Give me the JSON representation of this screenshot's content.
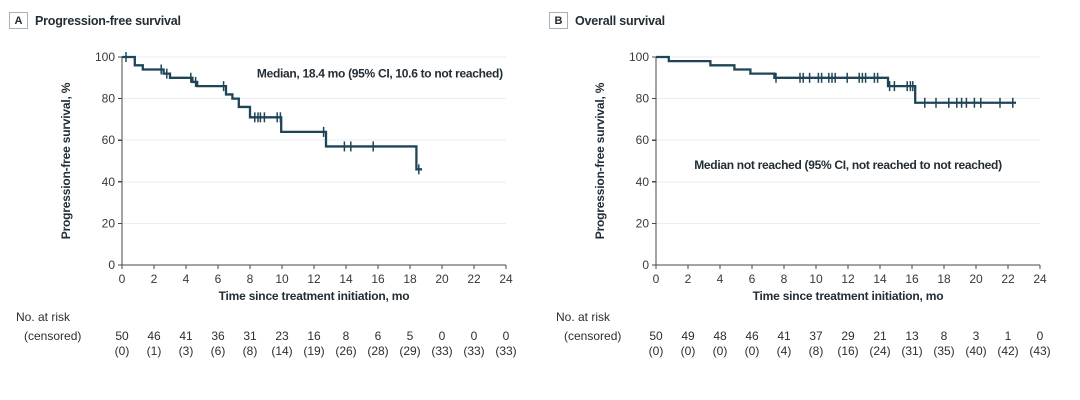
{
  "colors": {
    "curve": "#1e4557",
    "axis": "#45494d",
    "grid": "#e7edf0",
    "text": "#232d34",
    "tick_text": "#36393d",
    "background": "#ffffff"
  },
  "chart_data": [
    {
      "type": "line",
      "subtype": "kaplan-meier-step",
      "panel_label": "A",
      "panel_title": "Progression-free survival",
      "ylabel": "Progression-free survival, %",
      "xlabel": "Time since treatment initiation, mo",
      "xlim": [
        0,
        24
      ],
      "ylim": [
        0,
        100
      ],
      "x_ticks": [
        0,
        2,
        4,
        6,
        8,
        10,
        12,
        14,
        16,
        18,
        20,
        22,
        24
      ],
      "y_ticks": [
        0,
        20,
        40,
        60,
        80,
        100
      ],
      "grid": "horizontal",
      "annotation": {
        "text": "Median, 18.4 mo (95% CI, 10.6 to not reached)",
        "x": 23.8,
        "y": 92,
        "anchor": "end"
      },
      "steps": [
        [
          0,
          100
        ],
        [
          0.8,
          96
        ],
        [
          1.3,
          94
        ],
        [
          2.6,
          92
        ],
        [
          3.0,
          90
        ],
        [
          4.4,
          88
        ],
        [
          4.7,
          86
        ],
        [
          6.5,
          82
        ],
        [
          6.9,
          80
        ],
        [
          7.3,
          76
        ],
        [
          8.0,
          71
        ],
        [
          9.95,
          64
        ],
        [
          12.75,
          57
        ],
        [
          18.4,
          46
        ]
      ],
      "curve_end": 18.75,
      "censors": [
        [
          0.25,
          100
        ],
        [
          2.45,
          94
        ],
        [
          2.8,
          92
        ],
        [
          4.3,
          90
        ],
        [
          4.6,
          88
        ],
        [
          6.35,
          86
        ],
        [
          8.3,
          71
        ],
        [
          8.5,
          71
        ],
        [
          8.65,
          71
        ],
        [
          8.9,
          71
        ],
        [
          9.7,
          71
        ],
        [
          9.9,
          71
        ],
        [
          12.6,
          64
        ],
        [
          13.9,
          57
        ],
        [
          14.3,
          57
        ],
        [
          15.7,
          57
        ],
        [
          18.55,
          46
        ]
      ],
      "at_risk_header": "No. at risk",
      "at_risk_subheader": "(censored)",
      "at_risk_times": [
        0,
        2,
        4,
        6,
        8,
        10,
        12,
        14,
        16,
        18,
        20,
        22,
        24
      ],
      "at_risk_n": [
        "50",
        "46",
        "41",
        "36",
        "31",
        "23",
        "16",
        "8",
        "6",
        "5",
        "0",
        "0",
        "0"
      ],
      "at_risk_censored": [
        "(0)",
        "(1)",
        "(3)",
        "(6)",
        "(8)",
        "(14)",
        "(19)",
        "(26)",
        "(28)",
        "(29)",
        "(33)",
        "(33)",
        "(33)"
      ]
    },
    {
      "type": "line",
      "subtype": "kaplan-meier-step",
      "panel_label": "B",
      "panel_title": "Overall survival",
      "ylabel": "Progression-free survival, %",
      "xlabel": "Time since treatment initiation, mo",
      "xlim": [
        0,
        24
      ],
      "ylim": [
        0,
        100
      ],
      "x_ticks": [
        0,
        2,
        4,
        6,
        8,
        10,
        12,
        14,
        16,
        18,
        20,
        22,
        24
      ],
      "y_ticks": [
        0,
        20,
        40,
        60,
        80,
        100
      ],
      "grid": "horizontal",
      "annotation": {
        "text": "Median not reached (95% CI, not reached to not reached)",
        "x": 12,
        "y": 48,
        "anchor": "middle"
      },
      "steps": [
        [
          0,
          100
        ],
        [
          0.8,
          98
        ],
        [
          3.4,
          96
        ],
        [
          4.9,
          94
        ],
        [
          5.9,
          92
        ],
        [
          7.4,
          90
        ],
        [
          14.5,
          86
        ],
        [
          16.2,
          78
        ]
      ],
      "curve_end": 22.5,
      "censors": [
        [
          7.5,
          90
        ],
        [
          9.0,
          90
        ],
        [
          9.2,
          90
        ],
        [
          9.6,
          90
        ],
        [
          10.15,
          90
        ],
        [
          10.35,
          90
        ],
        [
          10.8,
          90
        ],
        [
          11.0,
          90
        ],
        [
          11.2,
          90
        ],
        [
          11.95,
          90
        ],
        [
          12.7,
          90
        ],
        [
          12.9,
          90
        ],
        [
          13.1,
          90
        ],
        [
          13.65,
          90
        ],
        [
          13.85,
          90
        ],
        [
          14.6,
          86
        ],
        [
          14.9,
          86
        ],
        [
          15.7,
          86
        ],
        [
          15.9,
          86
        ],
        [
          16.05,
          86
        ],
        [
          16.8,
          78
        ],
        [
          17.5,
          78
        ],
        [
          18.3,
          78
        ],
        [
          18.8,
          78
        ],
        [
          19.1,
          78
        ],
        [
          19.4,
          78
        ],
        [
          19.9,
          78
        ],
        [
          20.3,
          78
        ],
        [
          21.5,
          78
        ],
        [
          22.3,
          78
        ]
      ],
      "at_risk_header": "No. at risk",
      "at_risk_subheader": "(censored)",
      "at_risk_times": [
        0,
        2,
        4,
        6,
        8,
        10,
        12,
        14,
        16,
        18,
        20,
        22,
        24
      ],
      "at_risk_n": [
        "50",
        "49",
        "48",
        "46",
        "41",
        "37",
        "29",
        "21",
        "13",
        "8",
        "3",
        "1",
        "0"
      ],
      "at_risk_censored": [
        "(0)",
        "(0)",
        "(0)",
        "(0)",
        "(4)",
        "(8)",
        "(16)",
        "(24)",
        "(31)",
        "(35)",
        "(40)",
        "(42)",
        "(43)"
      ]
    }
  ]
}
